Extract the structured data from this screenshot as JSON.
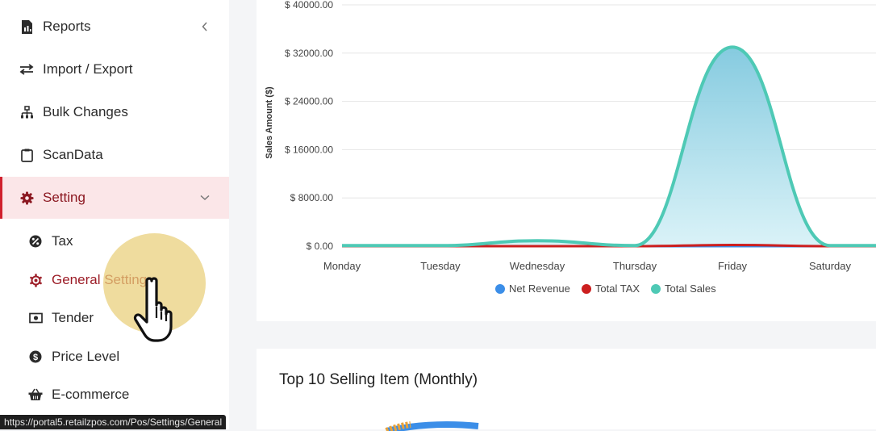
{
  "sidebar": {
    "items": [
      {
        "label": "Reports",
        "icon": "reports-icon",
        "has_chevron": true
      },
      {
        "label": "Import / Export",
        "icon": "import-export-icon"
      },
      {
        "label": "Bulk Changes",
        "icon": "sitemap-icon"
      },
      {
        "label": "ScanData",
        "icon": "clipboard-icon"
      },
      {
        "label": "Setting",
        "icon": "gear-icon",
        "active": true
      }
    ],
    "subitems": [
      {
        "label": "Tax",
        "icon": "tax-icon"
      },
      {
        "label": "General Setting",
        "icon": "cog-outline-icon",
        "current": true
      },
      {
        "label": "Tender",
        "icon": "money-bill-icon"
      },
      {
        "label": "Price Level",
        "icon": "dollar-circle-icon"
      },
      {
        "label": "E-commerce",
        "icon": "basket-icon"
      }
    ]
  },
  "status_url": "https://portal5.retailzpos.com/Pos/Settings/General",
  "colors": {
    "active_bg": "#fbe6e8",
    "active_border": "#d0202d",
    "net_revenue": "#3b8ee8",
    "total_tax": "#cc1f1f",
    "total_sales": "#4ec9b5"
  },
  "chart_data": {
    "type": "area",
    "ylabel": "Sales Amount ($)",
    "categories": [
      "Monday",
      "Tuesday",
      "Wednesday",
      "Thursday",
      "Friday",
      "Saturday"
    ],
    "y_ticks": [
      "$ 0.00",
      "$ 8000.00",
      "$ 16000.00",
      "$ 24000.00",
      "$ 32000.00",
      "$ 40000.00"
    ],
    "ylim": [
      0,
      40000
    ],
    "series": [
      {
        "name": "Net Revenue",
        "values": [
          0,
          0,
          0,
          0,
          0,
          0
        ]
      },
      {
        "name": "Total TAX",
        "values": [
          0,
          0,
          0,
          0,
          200,
          0
        ]
      },
      {
        "name": "Total Sales",
        "values": [
          100,
          100,
          900,
          100,
          33000,
          100
        ]
      }
    ],
    "legend_position": "bottom-center",
    "grid": true
  },
  "items_card": {
    "title": "Top 10 Selling Item (Monthly)"
  }
}
